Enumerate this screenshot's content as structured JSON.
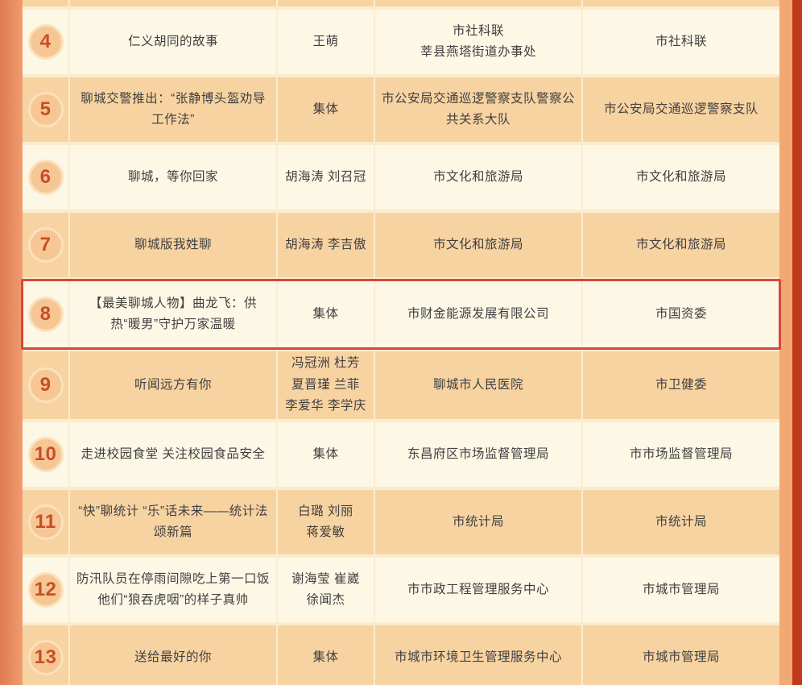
{
  "page": {
    "left_border_color": "#ec9166",
    "right_band_color": "#f2a873",
    "right_edge_color": "#c0391b",
    "row_cream_color": "#fdf7e6",
    "row_orange_color": "#f8d3a2",
    "number_color": "#c94d27",
    "highlight_border_color": "#d9473a"
  },
  "table": {
    "rows": [
      {
        "num": "4",
        "title": "仁义胡同的故事",
        "author": "王萌",
        "org": "市社科联\n莘县燕塔街道办事处",
        "recommender": "市社科联",
        "highlighted": false
      },
      {
        "num": "5",
        "title": "聊城交警推出：“张静博头盔劝导工作法”",
        "author": "集体",
        "org": "市公安局交通巡逻警察支队警察公共关系大队",
        "recommender": "市公安局交通巡逻警察支队",
        "highlighted": false
      },
      {
        "num": "6",
        "title": "聊城，等你回家",
        "author": "胡海涛 刘召冠",
        "org": "市文化和旅游局",
        "recommender": "市文化和旅游局",
        "highlighted": false
      },
      {
        "num": "7",
        "title": "聊城版我姓聊",
        "author": "胡海涛 李吉傲",
        "org": "市文化和旅游局",
        "recommender": "市文化和旅游局",
        "highlighted": false
      },
      {
        "num": "8",
        "title": "【最美聊城人物】曲龙飞：供热“暖男”守护万家温暖",
        "author": "集体",
        "org": "市财金能源发展有限公司",
        "recommender": "市国资委",
        "highlighted": true
      },
      {
        "num": "9",
        "title": "听闻远方有你",
        "author": "冯冠洲 杜芳\n夏晋瑾 兰菲\n李爱华 李学庆",
        "org": "聊城市人民医院",
        "recommender": "市卫健委",
        "highlighted": false
      },
      {
        "num": "10",
        "title": "走进校园食堂 关注校园食品安全",
        "author": "集体",
        "org": "东昌府区市场监督管理局",
        "recommender": "市市场监督管理局",
        "highlighted": false
      },
      {
        "num": "11",
        "title": "“快”聊统计 “乐”话未来——统计法颂新篇",
        "author": "白璐 刘丽\n蒋爱敏",
        "org": "市统计局",
        "recommender": "市统计局",
        "highlighted": false
      },
      {
        "num": "12",
        "title": "防汛队员在停雨间隙吃上第一口饭 他们“狼吞虎咽”的样子真帅",
        "author": "谢海莹 崔崴\n徐闻杰",
        "org": "市市政工程管理服务中心",
        "recommender": "市城市管理局",
        "highlighted": false
      },
      {
        "num": "13",
        "title": "送给最好的你",
        "author": "集体",
        "org": "市城市环境卫生管理服务中心",
        "recommender": "市城市管理局",
        "highlighted": false
      }
    ]
  }
}
